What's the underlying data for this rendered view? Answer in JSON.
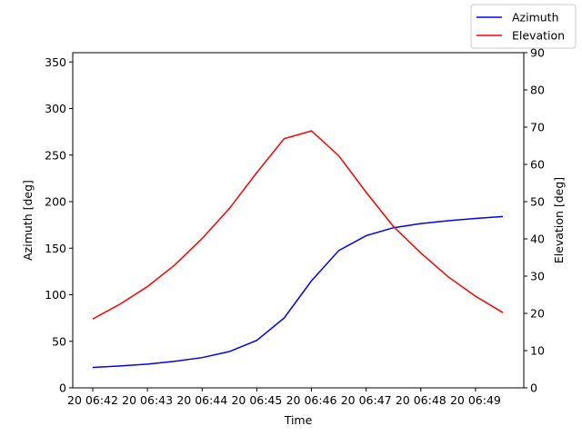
{
  "chart_data": {
    "type": "line",
    "xlabel": "Time",
    "ylabel_left": "Azimuth [deg]",
    "ylabel_right": "Elevation [deg]",
    "x": [
      "06:42:00",
      "06:42:30",
      "06:43:00",
      "06:43:30",
      "06:44:00",
      "06:44:30",
      "06:45:00",
      "06:45:30",
      "06:46:00",
      "06:46:30",
      "06:47:00",
      "06:47:30",
      "06:48:00",
      "06:48:30",
      "06:49:00",
      "06:49:30"
    ],
    "x_tick_labels": [
      "20 06:42",
      "20 06:43",
      "20 06:44",
      "20 06:45",
      "20 06:46",
      "20 06:47",
      "20 06:48",
      "20 06:49"
    ],
    "ylim_left": [
      0,
      360
    ],
    "ylim_right": [
      0,
      90
    ],
    "yticks_left": [
      0,
      50,
      100,
      150,
      200,
      250,
      300,
      350
    ],
    "yticks_right": [
      0,
      10,
      20,
      30,
      40,
      50,
      60,
      70,
      80,
      90
    ],
    "grid": false,
    "legend_position": "top-right",
    "series": [
      {
        "name": "Azimuth",
        "axis": "left",
        "color": "#0000ff",
        "values": [
          22,
          23.5,
          25.5,
          28.5,
          32.5,
          39,
          51,
          75,
          115,
          147.5,
          163.5,
          172,
          176.5,
          179.5,
          182,
          184
        ]
      },
      {
        "name": "Elevation",
        "axis": "right",
        "color": "#ff0000",
        "values": [
          18.5,
          22.5,
          27.2,
          33,
          40.1,
          48.2,
          57.8,
          66.9,
          69,
          62.3,
          52.5,
          43.3,
          36.2,
          29.8,
          24.6,
          20.2
        ]
      }
    ]
  }
}
